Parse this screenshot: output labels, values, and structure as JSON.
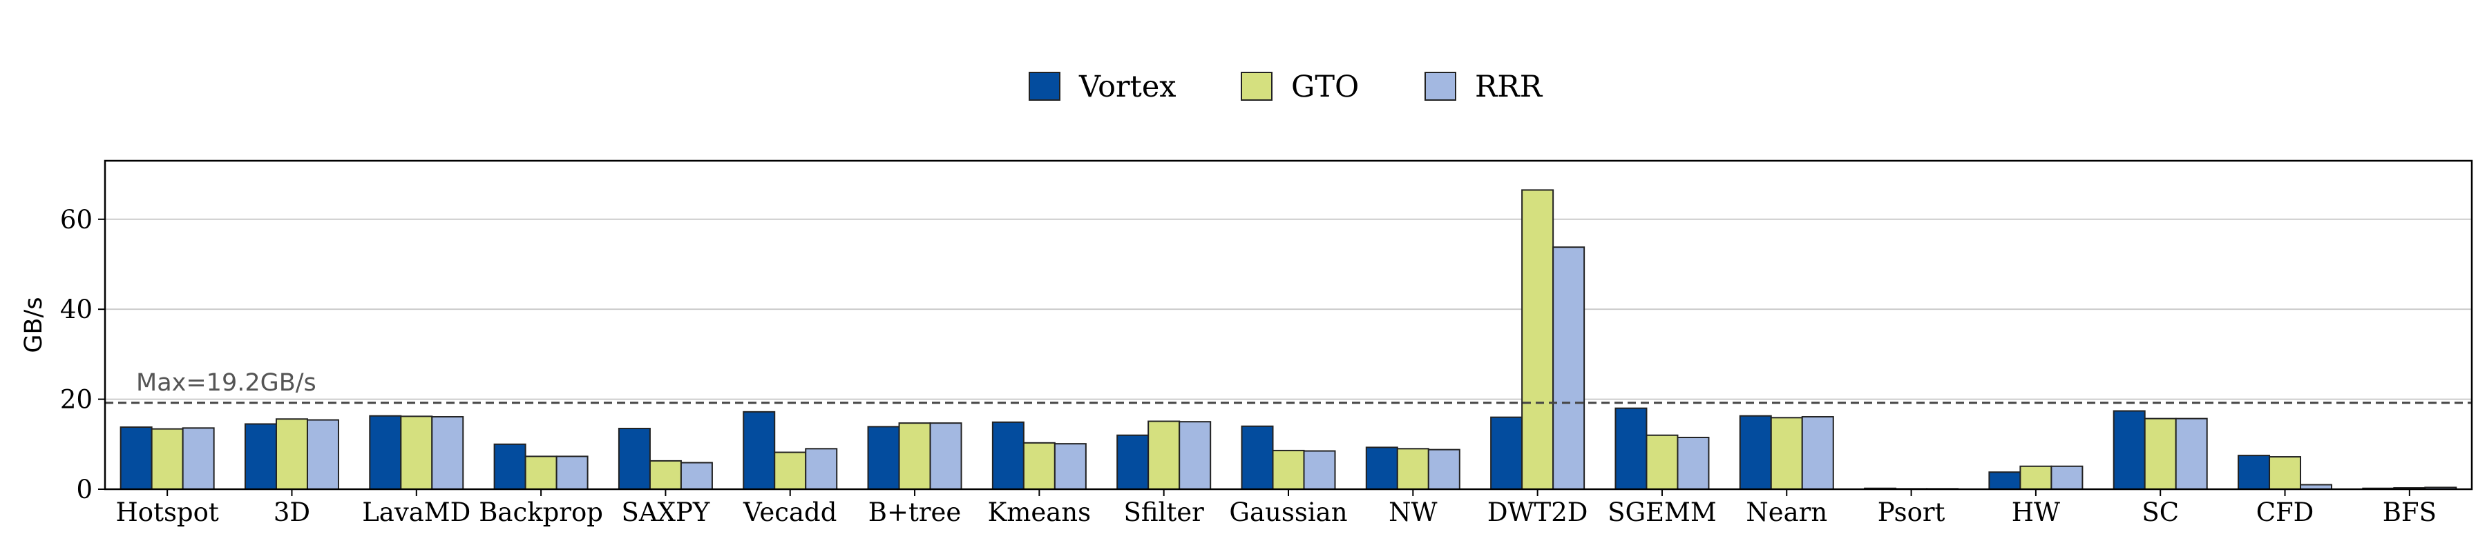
{
  "chart_data": {
    "type": "bar",
    "title": "",
    "xlabel": "",
    "ylabel": "GB/s",
    "ylim": [
      0,
      73
    ],
    "yticks": [
      0,
      20,
      40,
      60
    ],
    "grid": true,
    "legend_position": "top-center",
    "categories": [
      "Hotspot",
      "3D",
      "LavaMD",
      "Backprop",
      "SAXPY",
      "Vecadd",
      "B+tree",
      "Kmeans",
      "Sfilter",
      "Gaussian",
      "NW",
      "DWT2D",
      "SGEMM",
      "Nearn",
      "Psort",
      "HW",
      "SC",
      "CFD",
      "BFS"
    ],
    "series": [
      {
        "name": "Vortex",
        "color": "#034C9E",
        "values": [
          13.8,
          14.5,
          16.3,
          10.0,
          13.5,
          17.2,
          13.9,
          14.9,
          12.0,
          14.0,
          9.3,
          16.0,
          18.0,
          16.3,
          0.2,
          3.8,
          17.4,
          7.5,
          0.2
        ]
      },
      {
        "name": "GTO",
        "color": "#D5E07F",
        "values": [
          13.4,
          15.6,
          16.2,
          7.3,
          6.3,
          8.2,
          14.7,
          10.3,
          15.1,
          8.6,
          9.0,
          66.5,
          12.0,
          15.9,
          0.1,
          5.1,
          15.7,
          7.2,
          0.3
        ]
      },
      {
        "name": "RRR",
        "color": "#A3B8E1",
        "values": [
          13.6,
          15.4,
          16.1,
          7.3,
          5.9,
          9.0,
          14.7,
          10.1,
          15.0,
          8.5,
          8.8,
          53.8,
          11.5,
          16.1,
          0.1,
          5.1,
          15.7,
          1.0,
          0.4
        ]
      }
    ],
    "reference_line": {
      "value": 19.2,
      "label": "Max=19.2GB/s"
    }
  }
}
